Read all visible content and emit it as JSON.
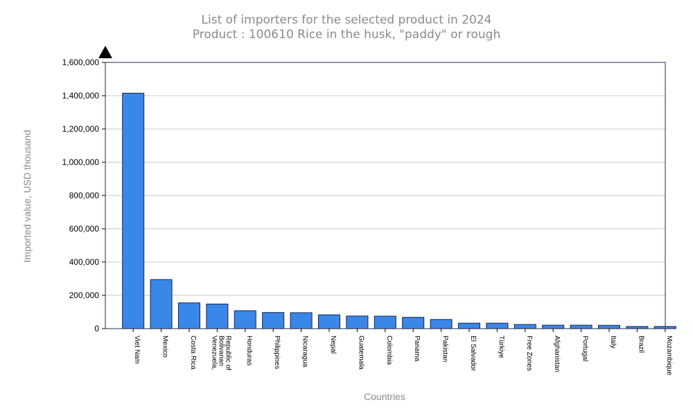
{
  "chart_data": {
    "type": "bar",
    "title": "List of importers for the selected product in 2024",
    "subtitle": "Product : 100610 Rice in the husk, \"paddy\" or rough",
    "xlabel": "Countries",
    "ylabel": "Imported value, USD thousand",
    "ylim": [
      0,
      1600000
    ],
    "yticks": [
      "0",
      "200,000",
      "400,000",
      "600,000",
      "800,000",
      "1,000,000",
      "1,200,000",
      "1,400,000",
      "1,600,000"
    ],
    "grid": true,
    "bar_color": "#3a87ea",
    "categories": [
      "Viet Nam",
      "Mexico",
      "Costa Rica",
      "Venezuela, Bolivarian Republic of",
      "Honduras",
      "Philippines",
      "Nicaragua",
      "Nepal",
      "Guatemala",
      "Colombia",
      "Panama",
      "Pakistan",
      "El Salvador",
      "Türkiye",
      "Free Zones",
      "Afghanistan",
      "Portugal",
      "Italy",
      "Brazil",
      "Mozambique"
    ],
    "category_lines": [
      [
        "Viet Nam"
      ],
      [
        "Mexico"
      ],
      [
        "Costa Rica"
      ],
      [
        "Venezuela,",
        "Bolivarian",
        "Republic of"
      ],
      [
        "Honduras"
      ],
      [
        "Philippines"
      ],
      [
        "Nicaragua"
      ],
      [
        "Nepal"
      ],
      [
        "Guatemala"
      ],
      [
        "Colombia"
      ],
      [
        "Panama"
      ],
      [
        "Pakistan"
      ],
      [
        "El Salvador"
      ],
      [
        "Türkiye"
      ],
      [
        "Free Zones"
      ],
      [
        "Afghanistan"
      ],
      [
        "Portugal"
      ],
      [
        "Italy"
      ],
      [
        "Brazil"
      ],
      [
        "Mozambique"
      ]
    ],
    "values": [
      1415000,
      295000,
      155000,
      148000,
      108000,
      97000,
      96000,
      83000,
      76000,
      75000,
      68000,
      55000,
      33000,
      33000,
      25000,
      21000,
      21000,
      20000,
      13000,
      13000
    ]
  }
}
